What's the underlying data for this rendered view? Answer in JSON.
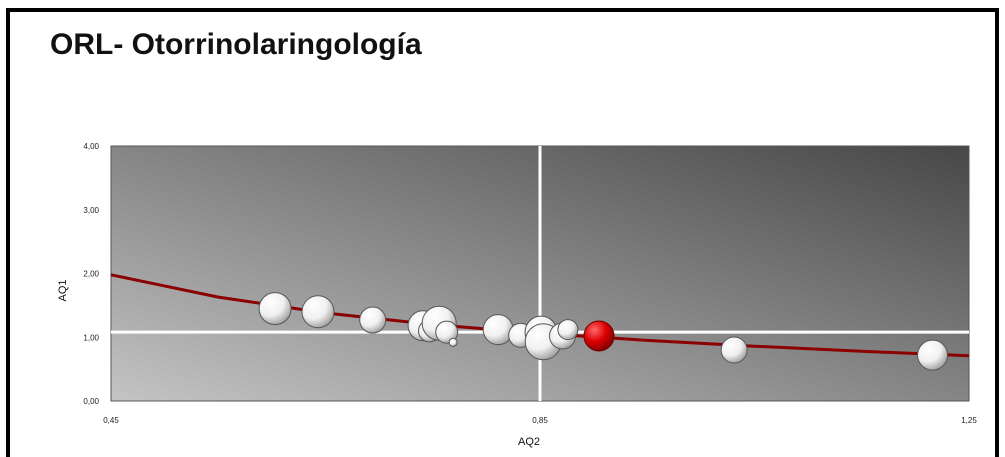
{
  "chart_data": {
    "type": "scatter",
    "title": "ORL- Otorrinolaringología",
    "xlabel": "AQ2",
    "ylabel": "AQ1",
    "xlim": [
      0.45,
      1.25
    ],
    "ylim": [
      0.0,
      4.0
    ],
    "x_ticks": [
      "0,45",
      "0,85",
      "1,25"
    ],
    "y_ticks": [
      "0,00",
      "1,00",
      "2,00",
      "3,00",
      "4,00"
    ],
    "reference_lines": {
      "x": 0.85,
      "y": 1.08
    },
    "trend_curve": {
      "type": "power",
      "points": [
        [
          0.45,
          1.98
        ],
        [
          0.55,
          1.63
        ],
        [
          0.65,
          1.38
        ],
        [
          0.75,
          1.2
        ],
        [
          0.85,
          1.06
        ],
        [
          0.95,
          0.95
        ],
        [
          1.05,
          0.86
        ],
        [
          1.15,
          0.78
        ],
        [
          1.25,
          0.71
        ]
      ]
    },
    "points": [
      {
        "x": 0.603,
        "y": 1.45,
        "size": 16,
        "highlight": false
      },
      {
        "x": 0.643,
        "y": 1.4,
        "size": 16,
        "highlight": false
      },
      {
        "x": 0.694,
        "y": 1.27,
        "size": 13,
        "highlight": false
      },
      {
        "x": 0.741,
        "y": 1.18,
        "size": 15,
        "highlight": false
      },
      {
        "x": 0.747,
        "y": 1.1,
        "size": 11,
        "highlight": false
      },
      {
        "x": 0.756,
        "y": 1.22,
        "size": 17,
        "highlight": false
      },
      {
        "x": 0.763,
        "y": 1.08,
        "size": 11,
        "highlight": false
      },
      {
        "x": 0.769,
        "y": 0.92,
        "size": 4,
        "highlight": false
      },
      {
        "x": 0.811,
        "y": 1.12,
        "size": 15,
        "highlight": false
      },
      {
        "x": 0.832,
        "y": 1.03,
        "size": 12,
        "highlight": false
      },
      {
        "x": 0.851,
        "y": 1.08,
        "size": 16,
        "highlight": false
      },
      {
        "x": 0.853,
        "y": 0.93,
        "size": 18,
        "highlight": false
      },
      {
        "x": 0.871,
        "y": 1.02,
        "size": 13,
        "highlight": false
      },
      {
        "x": 0.876,
        "y": 1.12,
        "size": 10,
        "highlight": false
      },
      {
        "x": 0.905,
        "y": 1.02,
        "size": 15,
        "highlight": true
      },
      {
        "x": 1.031,
        "y": 0.8,
        "size": 13,
        "highlight": false
      },
      {
        "x": 1.216,
        "y": 0.72,
        "size": 15,
        "highlight": false
      }
    ],
    "colors": {
      "bubble": "#ffffff",
      "highlight": "#cc0000",
      "curve": "#8b0000",
      "reflines": "#ffffff"
    },
    "grid": false,
    "legend": "none"
  }
}
